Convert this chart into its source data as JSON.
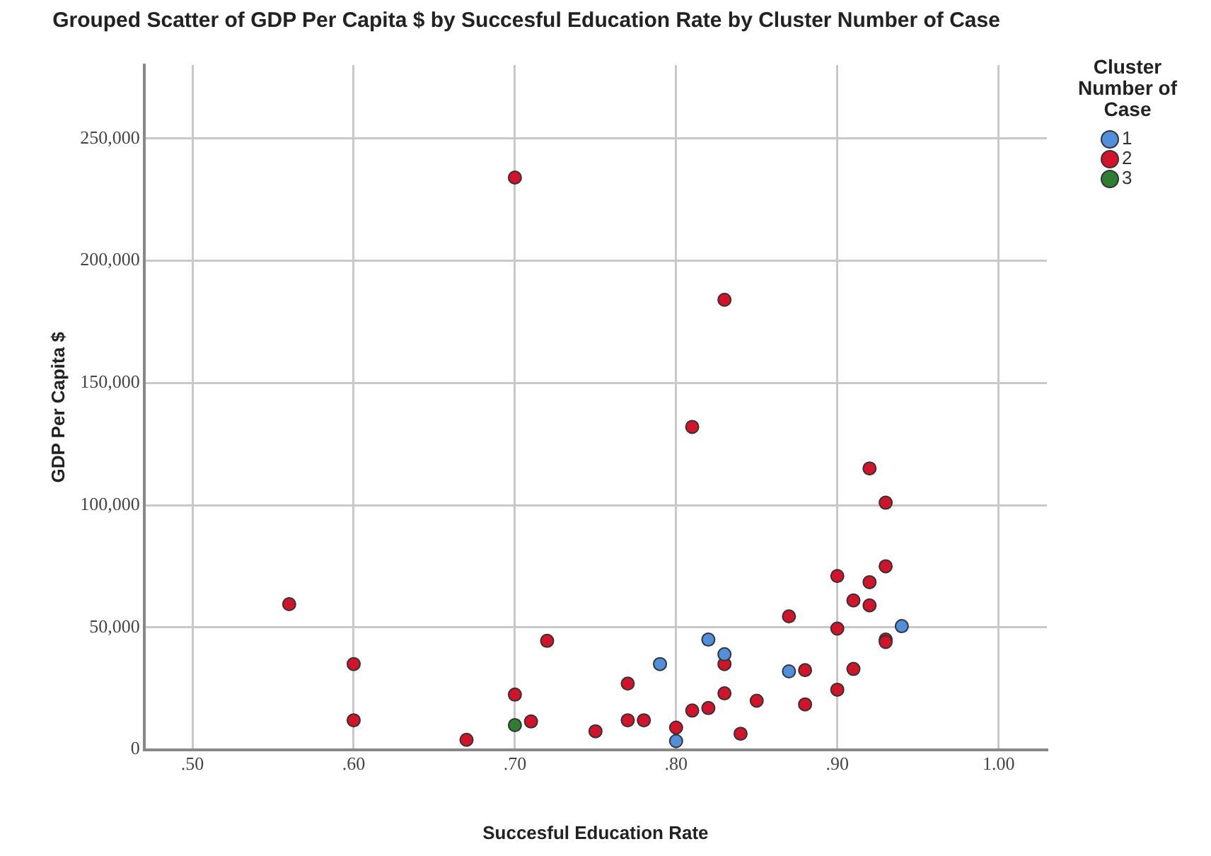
{
  "chart_data": {
    "type": "scatter",
    "title": "Grouped Scatter of GDP Per Capita $ by Succesful Education Rate by Cluster Number of Case",
    "xlabel": "Succesful Education Rate",
    "ylabel": "GDP Per Capita $",
    "legend_title": "Cluster Number of Case",
    "legend": "right",
    "grid": true,
    "marker": "circle",
    "xlim": [
      0.47,
      1.03
    ],
    "xticks": [
      {
        "value": 0.5,
        "label": ".50"
      },
      {
        "value": 0.6,
        "label": ".60"
      },
      {
        "value": 0.7,
        "label": ".70"
      },
      {
        "value": 0.8,
        "label": ".80"
      },
      {
        "value": 0.9,
        "label": ".90"
      },
      {
        "value": 1.0,
        "label": "1.00"
      }
    ],
    "ylim": [
      0,
      280000
    ],
    "yticks": [
      {
        "value": 0,
        "label": "0"
      },
      {
        "value": 50000,
        "label": "50,000"
      },
      {
        "value": 100000,
        "label": "100,000"
      },
      {
        "value": 150000,
        "label": "150,000"
      },
      {
        "value": 200000,
        "label": "200,000"
      },
      {
        "value": 250000,
        "label": "250,000"
      }
    ],
    "series": [
      {
        "name": "1",
        "color": "#4f8fdc",
        "x": [
          0.79,
          0.82,
          0.83,
          0.8,
          0.87,
          0.94
        ],
        "values": [
          35000,
          45000,
          39000,
          3500,
          32000,
          50500
        ]
      },
      {
        "name": "2",
        "color": "#d2132a",
        "x": [
          0.56,
          0.6,
          0.6,
          0.67,
          0.7,
          0.7,
          0.71,
          0.72,
          0.75,
          0.77,
          0.77,
          0.78,
          0.8,
          0.81,
          0.81,
          0.82,
          0.83,
          0.83,
          0.83,
          0.84,
          0.85,
          0.87,
          0.88,
          0.88,
          0.9,
          0.9,
          0.9,
          0.91,
          0.91,
          0.92,
          0.92,
          0.92,
          0.93,
          0.93,
          0.93,
          0.93
        ],
        "values": [
          59500,
          35000,
          12000,
          4000,
          234000,
          22500,
          11500,
          44500,
          7500,
          27000,
          12000,
          12000,
          9000,
          16000,
          132000,
          17000,
          184000,
          35000,
          23000,
          6500,
          20000,
          54500,
          32500,
          18500,
          71000,
          49500,
          24500,
          61000,
          33000,
          115000,
          59000,
          68500,
          101000,
          75000,
          45000,
          44000
        ]
      },
      {
        "name": "3",
        "color": "#2e7d32",
        "x": [
          0.7
        ],
        "values": [
          10000
        ]
      }
    ]
  }
}
